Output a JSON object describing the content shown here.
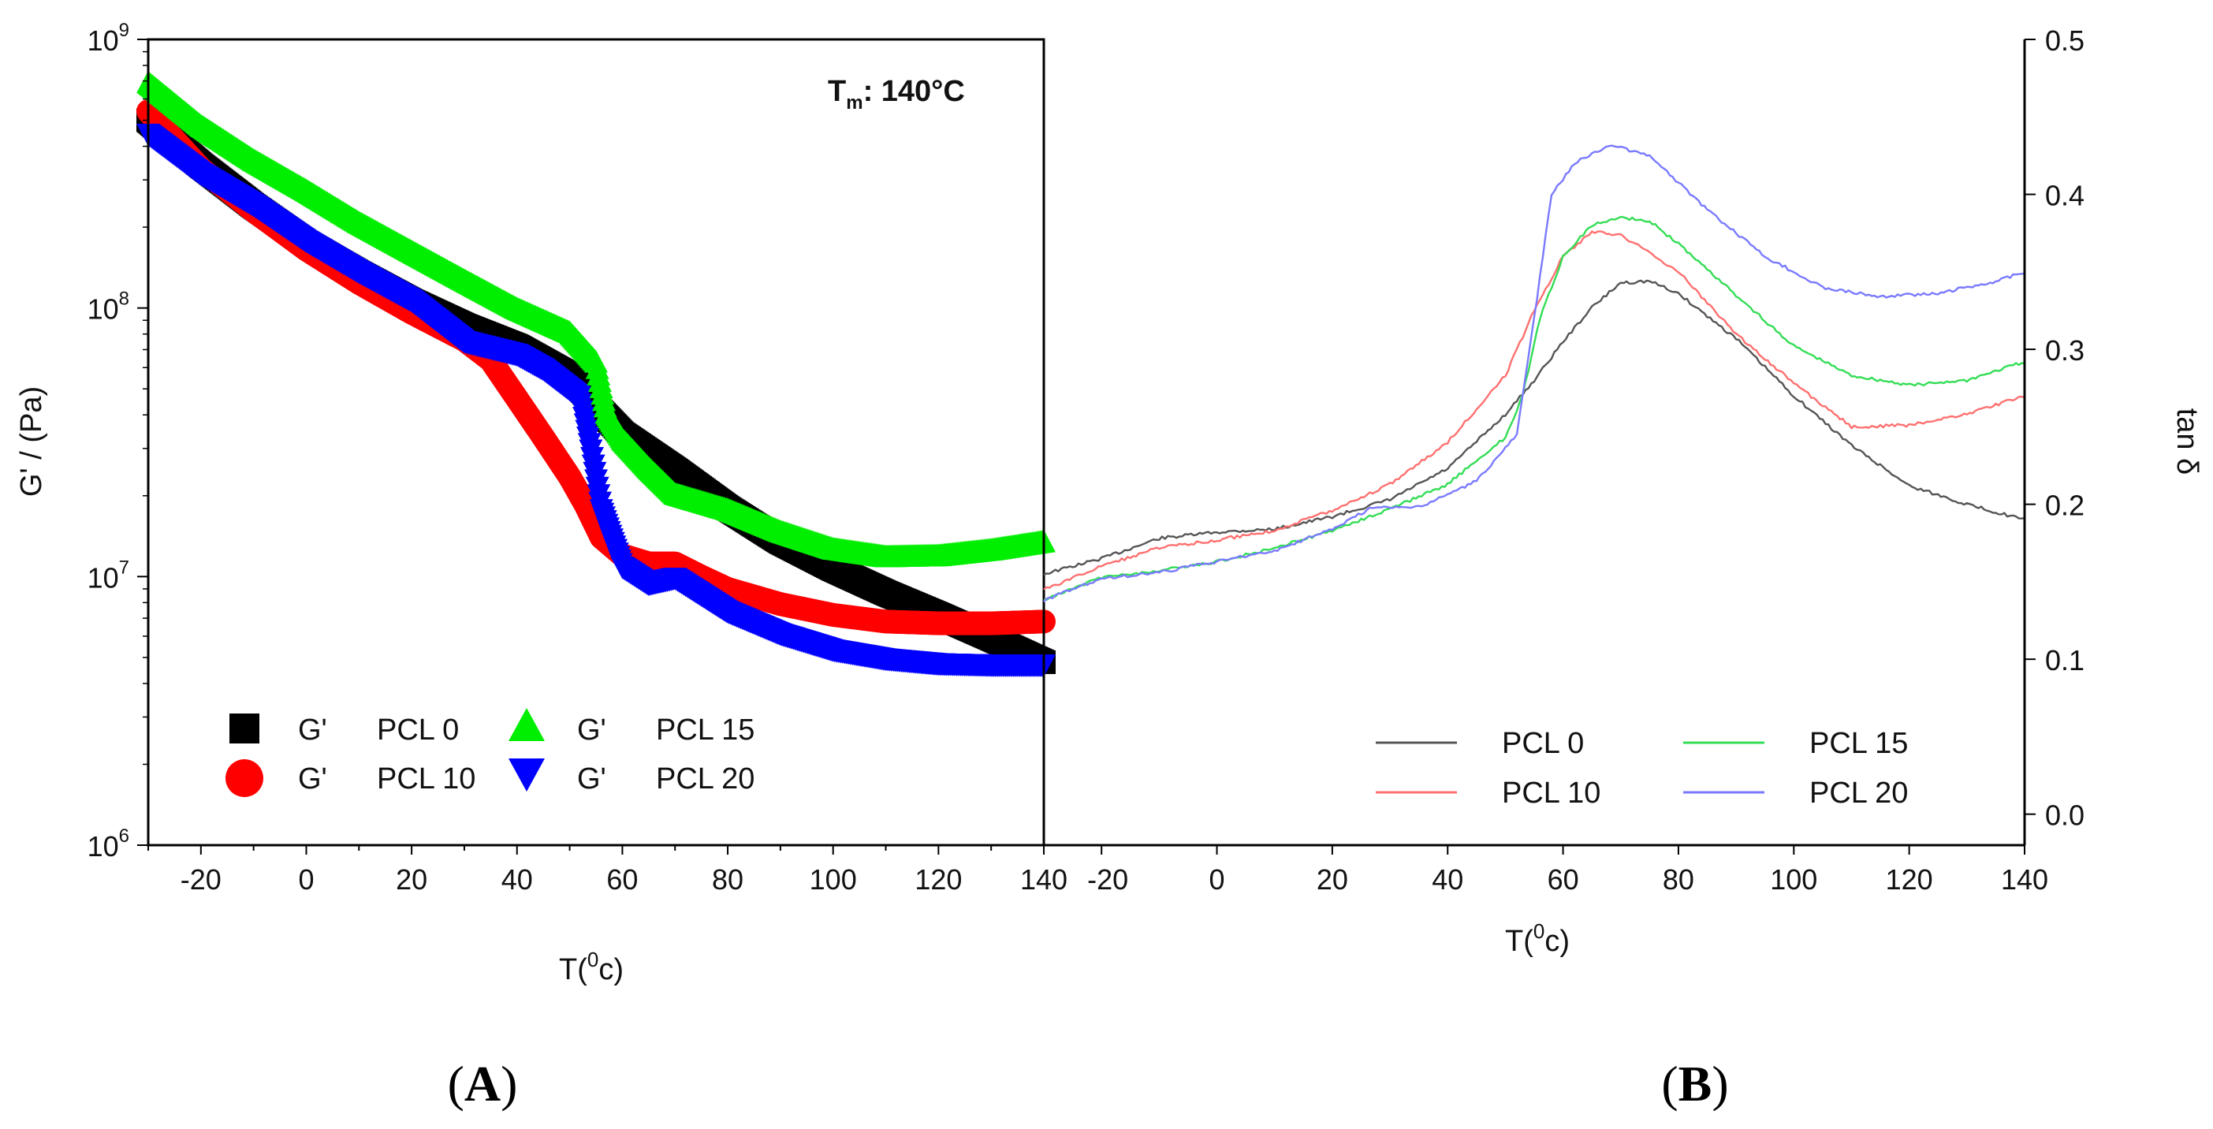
{
  "figure_labels": {
    "panel_a": "A",
    "panel_b": "B",
    "open_paren": "(",
    "close_paren": ")"
  },
  "colors": {
    "pcl0": "#000000",
    "pcl10": "#ff0000",
    "pcl15": "#00ee00",
    "pcl20": "#0000ff",
    "pcl0_line": "#555555",
    "pcl10_line": "#ff7070",
    "pcl15_line": "#33dd55",
    "pcl20_line": "#7a7aff"
  },
  "chart_data": [
    {
      "type": "scatter",
      "panel": "A",
      "xlabel_prefix": "T(",
      "xlabel_sup": "0",
      "xlabel_suffix": "c)",
      "ylabel": "G' / (Pa)",
      "yscale": "log",
      "xlim": [
        -30,
        140
      ],
      "ylim": [
        1000000,
        1000000000
      ],
      "x_ticks": [
        -20,
        0,
        20,
        40,
        60,
        80,
        100,
        120,
        140
      ],
      "x_tick_labels": [
        "-20",
        "0",
        "20",
        "40",
        "60",
        "80",
        "100",
        "120",
        "140"
      ],
      "y_ticks": [
        {
          "base": "10",
          "exp": "6",
          "value": 1000000
        },
        {
          "base": "10",
          "exp": "7",
          "value": 10000000
        },
        {
          "base": "10",
          "exp": "8",
          "value": 100000000
        },
        {
          "base": "10",
          "exp": "9",
          "value": 1000000000
        }
      ],
      "annotation": {
        "main": "T",
        "sub": "m",
        "rest": ": 140°C"
      },
      "legend": [
        {
          "prefix": "G'",
          "name": "PCL 0",
          "marker": "square"
        },
        {
          "prefix": "G'",
          "name": "PCL 10",
          "marker": "circle"
        },
        {
          "prefix": "G'",
          "name": "PCL 15",
          "marker": "triangle-up"
        },
        {
          "prefix": "G'",
          "name": "PCL 20",
          "marker": "triangle-down"
        }
      ],
      "series": [
        {
          "name": "PCL 0",
          "marker": "square",
          "color": "#000000",
          "points": [
            [
              -30,
              500000000
            ],
            [
              -20,
              340000000
            ],
            [
              -10,
              240000000
            ],
            [
              0,
              175000000
            ],
            [
              10,
              135000000
            ],
            [
              20,
              106000000
            ],
            [
              30,
              86000000
            ],
            [
              40,
              72000000
            ],
            [
              50,
              56000000
            ],
            [
              55,
              43000000
            ],
            [
              60,
              34000000
            ],
            [
              70,
              25000000
            ],
            [
              80,
              18000000
            ],
            [
              90,
              13500000
            ],
            [
              100,
              10700000
            ],
            [
              110,
              8700000
            ],
            [
              120,
              7200000
            ],
            [
              130,
              5900000
            ],
            [
              140,
              4800000
            ]
          ]
        },
        {
          "name": "PCL 10",
          "marker": "circle",
          "color": "#ff0000",
          "points": [
            [
              -30,
              540000000
            ],
            [
              -20,
              330000000
            ],
            [
              -10,
              230000000
            ],
            [
              0,
              165000000
            ],
            [
              10,
              124000000
            ],
            [
              20,
              96000000
            ],
            [
              30,
              76000000
            ],
            [
              35,
              64000000
            ],
            [
              40,
              46000000
            ],
            [
              45,
              33000000
            ],
            [
              50,
              23500000
            ],
            [
              53,
              18500000
            ],
            [
              56,
              14000000
            ],
            [
              60,
              12000000
            ],
            [
              65,
              11200000
            ],
            [
              70,
              11200000
            ],
            [
              75,
              10000000
            ],
            [
              80,
              9000000
            ],
            [
              90,
              7900000
            ],
            [
              100,
              7200000
            ],
            [
              110,
              6800000
            ],
            [
              120,
              6700000
            ],
            [
              130,
              6700000
            ],
            [
              140,
              6800000
            ]
          ]
        },
        {
          "name": "PCL 15",
          "marker": "triangle-up",
          "color": "#00ee00",
          "points": [
            [
              -30,
              680000000
            ],
            [
              -20,
              470000000
            ],
            [
              -10,
              350000000
            ],
            [
              0,
              270000000
            ],
            [
              10,
              205000000
            ],
            [
              20,
              160000000
            ],
            [
              30,
              125000000
            ],
            [
              40,
              98000000
            ],
            [
              50,
              80000000
            ],
            [
              55,
              62000000
            ],
            [
              57,
              40000000
            ],
            [
              60,
              32000000
            ],
            [
              65,
              25000000
            ],
            [
              70,
              20000000
            ],
            [
              80,
              17500000
            ],
            [
              90,
              14500000
            ],
            [
              100,
              12500000
            ],
            [
              110,
              11700000
            ],
            [
              120,
              11800000
            ],
            [
              130,
              12400000
            ],
            [
              140,
              13300000
            ]
          ]
        },
        {
          "name": "PCL 20",
          "marker": "triangle-down",
          "color": "#0000ff",
          "points": [
            [
              -30,
              450000000
            ],
            [
              -20,
              320000000
            ],
            [
              -10,
              245000000
            ],
            [
              0,
              180000000
            ],
            [
              10,
              138000000
            ],
            [
              20,
              108000000
            ],
            [
              30,
              76000000
            ],
            [
              40,
              68000000
            ],
            [
              45,
              60000000
            ],
            [
              52,
              47000000
            ],
            [
              54,
              30000000
            ],
            [
              56,
              18000000
            ],
            [
              58,
              14000000
            ],
            [
              60,
              11000000
            ],
            [
              65,
              9500000
            ],
            [
              70,
              10000000
            ],
            [
              80,
              7500000
            ],
            [
              90,
              6200000
            ],
            [
              100,
              5400000
            ],
            [
              110,
              5000000
            ],
            [
              120,
              4800000
            ],
            [
              130,
              4750000
            ],
            [
              140,
              4750000
            ]
          ]
        }
      ]
    },
    {
      "type": "line",
      "panel": "B",
      "xlabel_prefix": "T(",
      "xlabel_sup": "0",
      "xlabel_suffix": "c)",
      "ylabel": "tan δ",
      "xlim": [
        -30,
        140
      ],
      "ylim": [
        -0.02,
        0.5
      ],
      "x_ticks": [
        -20,
        0,
        20,
        40,
        60,
        80,
        100,
        120,
        140
      ],
      "x_tick_labels": [
        "-20",
        "0",
        "20",
        "40",
        "60",
        "80",
        "100",
        "120",
        "140"
      ],
      "y_ticks": [
        0.0,
        0.1,
        0.2,
        0.3,
        0.4,
        0.5
      ],
      "y_tick_labels": [
        "0.0",
        "0.1",
        "0.2",
        "0.3",
        "0.4",
        "0.5"
      ],
      "legend": [
        {
          "name": "PCL 0"
        },
        {
          "name": "PCL 10"
        },
        {
          "name": "PCL 15"
        },
        {
          "name": "PCL 20"
        }
      ],
      "series": [
        {
          "name": "PCL 0",
          "color": "#555555",
          "points": [
            [
              -30,
              0.155
            ],
            [
              -20,
              0.165
            ],
            [
              -10,
              0.178
            ],
            [
              0,
              0.182
            ],
            [
              10,
              0.184
            ],
            [
              20,
              0.192
            ],
            [
              30,
              0.203
            ],
            [
              40,
              0.223
            ],
            [
              50,
              0.258
            ],
            [
              55,
              0.28
            ],
            [
              60,
              0.305
            ],
            [
              65,
              0.327
            ],
            [
              70,
              0.343
            ],
            [
              75,
              0.344
            ],
            [
              80,
              0.336
            ],
            [
              90,
              0.307
            ],
            [
              100,
              0.27
            ],
            [
              110,
              0.238
            ],
            [
              120,
              0.212
            ],
            [
              130,
              0.2
            ],
            [
              140,
              0.19
            ]
          ]
        },
        {
          "name": "PCL 10",
          "color": "#ff7070",
          "points": [
            [
              -30,
              0.145
            ],
            [
              -20,
              0.16
            ],
            [
              -10,
              0.172
            ],
            [
              0,
              0.177
            ],
            [
              10,
              0.183
            ],
            [
              20,
              0.196
            ],
            [
              30,
              0.213
            ],
            [
              40,
              0.24
            ],
            [
              50,
              0.283
            ],
            [
              55,
              0.325
            ],
            [
              60,
              0.36
            ],
            [
              65,
              0.376
            ],
            [
              70,
              0.374
            ],
            [
              80,
              0.35
            ],
            [
              90,
              0.31
            ],
            [
              100,
              0.278
            ],
            [
              110,
              0.25
            ],
            [
              120,
              0.251
            ],
            [
              130,
              0.258
            ],
            [
              140,
              0.27
            ]
          ]
        },
        {
          "name": "PCL 15",
          "color": "#33dd55",
          "points": [
            [
              -30,
              0.138
            ],
            [
              -20,
              0.153
            ],
            [
              -10,
              0.157
            ],
            [
              0,
              0.163
            ],
            [
              10,
              0.172
            ],
            [
              20,
              0.183
            ],
            [
              30,
              0.197
            ],
            [
              40,
              0.213
            ],
            [
              50,
              0.243
            ],
            [
              53,
              0.27
            ],
            [
              56,
              0.32
            ],
            [
              60,
              0.36
            ],
            [
              65,
              0.38
            ],
            [
              70,
              0.385
            ],
            [
              75,
              0.383
            ],
            [
              80,
              0.368
            ],
            [
              90,
              0.335
            ],
            [
              100,
              0.302
            ],
            [
              110,
              0.283
            ],
            [
              120,
              0.277
            ],
            [
              130,
              0.28
            ],
            [
              140,
              0.292
            ]
          ]
        },
        {
          "name": "PCL 20",
          "color": "#7a7aff",
          "points": [
            [
              -30,
              0.138
            ],
            [
              -20,
              0.152
            ],
            [
              -10,
              0.156
            ],
            [
              0,
              0.163
            ],
            [
              10,
              0.17
            ],
            [
              20,
              0.184
            ],
            [
              27,
              0.198
            ],
            [
              35,
              0.198
            ],
            [
              45,
              0.215
            ],
            [
              52,
              0.245
            ],
            [
              55,
              0.32
            ],
            [
              58,
              0.4
            ],
            [
              62,
              0.42
            ],
            [
              68,
              0.432
            ],
            [
              75,
              0.425
            ],
            [
              85,
              0.39
            ],
            [
              95,
              0.36
            ],
            [
              105,
              0.34
            ],
            [
              115,
              0.334
            ],
            [
              125,
              0.336
            ],
            [
              135,
              0.344
            ],
            [
              140,
              0.35
            ]
          ]
        }
      ]
    }
  ]
}
